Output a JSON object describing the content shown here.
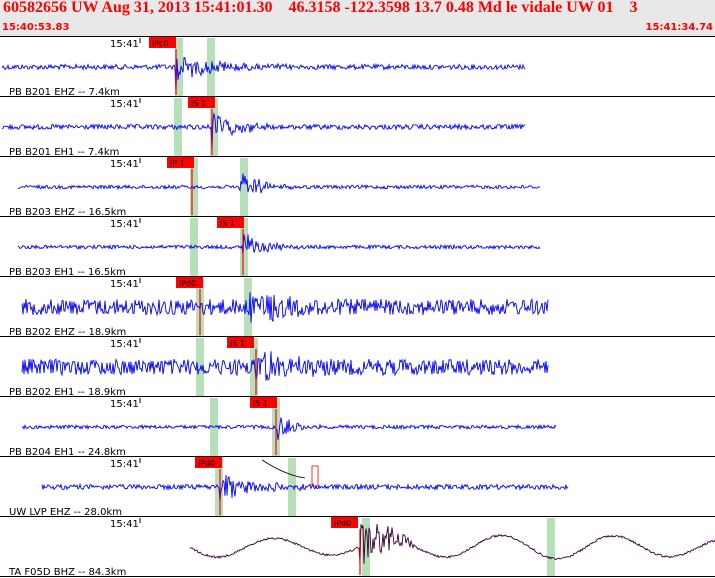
{
  "header": {
    "title": "60582656 UW Aug 31, 2013 15:41:01.30    46.3158 -122.3598 13.7 0.48 Md le vidale UW 01    3",
    "start_time": "15:40:53.83",
    "end_time": "15:41:34.74"
  },
  "colors": {
    "background": "#ffffff",
    "header_bg": "#e8e8e8",
    "title_text": "#ff0000",
    "waveform": "#0000ff",
    "last_waveform": "#330033",
    "pick_box": "#ff0000",
    "pick_window": "#b8e0b8",
    "grid": "#000000"
  },
  "panels": [
    {
      "label": "PB B201 EHZ -- 7.4km",
      "time_label": "15:41",
      "pick": "iPc0",
      "amplitude": "medium"
    },
    {
      "label": "PB B201 EH1 -- 7.4km",
      "time_label": "15:41",
      "pick": "iS 1",
      "amplitude": "medium"
    },
    {
      "label": "PB B203 EHZ -- 16.5km",
      "time_label": "15:41",
      "pick": "iP 1",
      "amplitude": "low"
    },
    {
      "label": "PB B203 EH1 -- 16.5km",
      "time_label": "15:41",
      "pick": "iS 1",
      "amplitude": "low"
    },
    {
      "label": "PB B202 EHZ -- 18.9km",
      "time_label": "15:41",
      "pick": "iPd0",
      "amplitude": "high"
    },
    {
      "label": "PB B202 EH1 -- 18.9km",
      "time_label": "15:41",
      "pick": "iS 1",
      "amplitude": "high"
    },
    {
      "label": "PB B204 EH1 -- 24.8km",
      "time_label": "15:41",
      "pick": "iS 1",
      "amplitude": "low"
    },
    {
      "label": "UW LVP EHZ -- 28.0km",
      "time_label": "15:41",
      "pick": "iPd0",
      "amplitude": "medium"
    },
    {
      "label": "TA F05D BHZ -- 84.3km",
      "time_label": "15:41",
      "pick": "iPd0",
      "amplitude": "long-period"
    }
  ]
}
